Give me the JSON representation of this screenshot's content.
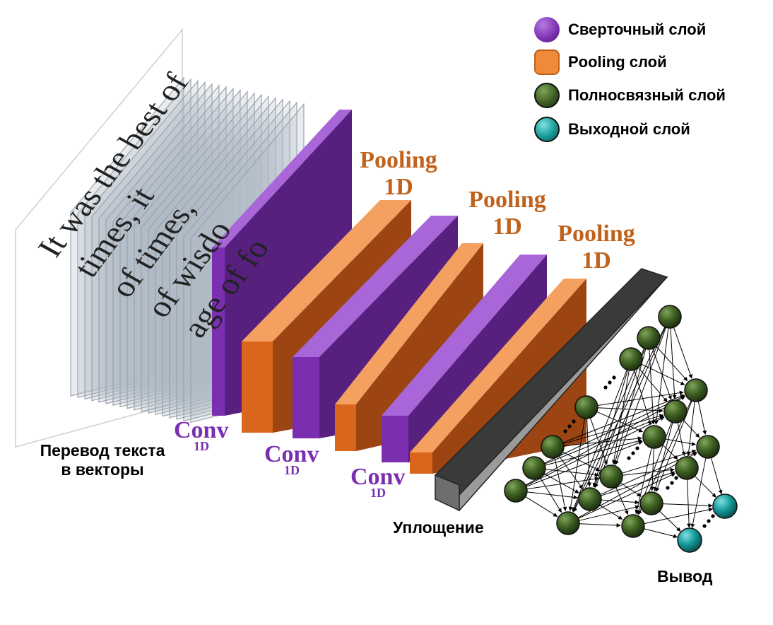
{
  "legend": {
    "items": [
      {
        "label": "Сверточный слой",
        "color": "#7b2fb0",
        "shape": "circle"
      },
      {
        "label": "Pooling слой",
        "color": "#ef8a3a",
        "shape": "rounded-square"
      },
      {
        "label": "Полносвязный слой",
        "color": "#3d5e22",
        "shape": "circle"
      },
      {
        "label": "Выходной слой",
        "color": "#169a9a",
        "shape": "circle"
      }
    ]
  },
  "input_text": {
    "lines": [
      "It was the best of",
      "times, it",
      "of times,",
      "of wisdo",
      "age of fo"
    ]
  },
  "labels": {
    "text_to_vectors_line1": "Перевод текста",
    "text_to_vectors_line2": "в векторы",
    "flatten": "Уплощение",
    "output": "Вывод"
  },
  "conv_labels": [
    {
      "main": "Conv",
      "sub": "1D"
    },
    {
      "main": "Conv",
      "sub": "1D"
    },
    {
      "main": "Conv",
      "sub": "1D"
    }
  ],
  "pool_labels": [
    {
      "line1": "Pooling",
      "line2": "1D"
    },
    {
      "line1": "Pooling",
      "line2": "1D"
    },
    {
      "line1": "Pooling",
      "line2": "1D"
    }
  ],
  "colors": {
    "conv_front": "#7b2fb0",
    "conv_side": "#57207f",
    "conv_top": "#a866d8",
    "pool_front": "#d9661b",
    "pool_side": "#9c4512",
    "pool_top": "#f4a060",
    "flatten_front": "#6e6e6e",
    "flatten_side": "#9a9a9a",
    "flatten_top": "#3a3a3a",
    "dense": "#3d5e22",
    "output_node": "#169a9a"
  }
}
